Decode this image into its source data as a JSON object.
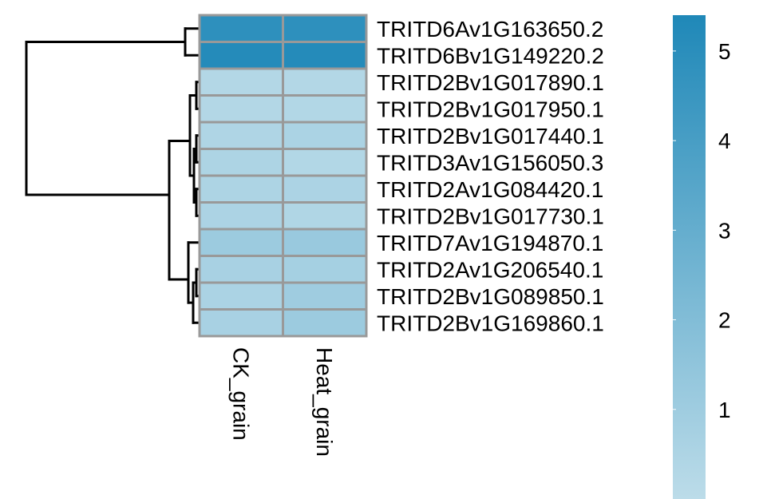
{
  "chart_data": {
    "type": "heatmap",
    "columns": [
      "CK_grain",
      "Heat_grain"
    ],
    "rows": [
      "TRITD6Av1G163650.2",
      "TRITD6Bv1G149220.2",
      "TRITD2Bv1G017890.1",
      "TRITD2Bv1G017950.1",
      "TRITD2Bv1G017440.1",
      "TRITD3Av1G156050.3",
      "TRITD2Av1G084420.1",
      "TRITD2Bv1G017730.1",
      "TRITD7Av1G194870.1",
      "TRITD2Av1G206540.1",
      "TRITD2Bv1G089850.1",
      "TRITD2Bv1G169860.1"
    ],
    "values": [
      [
        4.9,
        4.9
      ],
      [
        5.2,
        5.2
      ],
      [
        0.3,
        0.3
      ],
      [
        0.3,
        0.35
      ],
      [
        0.45,
        0.6
      ],
      [
        0.5,
        0.35
      ],
      [
        0.5,
        0.55
      ],
      [
        0.55,
        0.4
      ],
      [
        1.1,
        1.2
      ],
      [
        0.7,
        0.8
      ],
      [
        0.6,
        1.0
      ],
      [
        0.7,
        1.1
      ]
    ],
    "color_scale": {
      "min": 0,
      "max": 5.4,
      "low_color": "#bcdce9",
      "high_color": "#1f88b8",
      "ticks": [
        1,
        2,
        3,
        4,
        5
      ]
    },
    "cell_border_color": "#999999",
    "row_dendrogram": true,
    "xlabel": "",
    "ylabel": "",
    "title": ""
  }
}
